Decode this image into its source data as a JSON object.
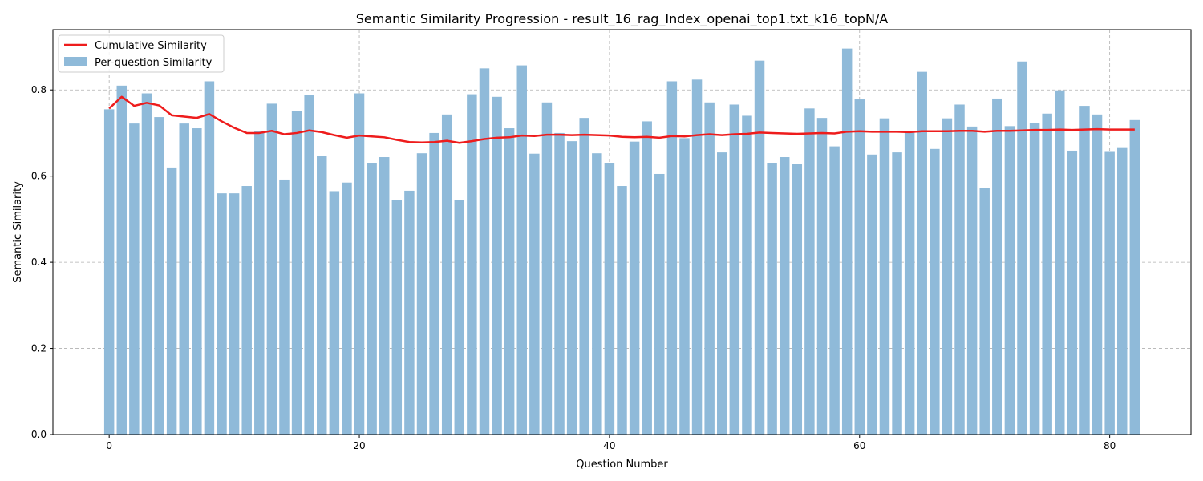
{
  "chart_data": {
    "type": "bar",
    "title": "Semantic Similarity Progression - result_16_rag_Index_openai_top1.txt_k16_topN/A",
    "xlabel": "Question Number",
    "ylabel": "Semantic Similarity",
    "xlim": [
      -4.5,
      86.5
    ],
    "ylim": [
      0,
      0.94
    ],
    "xticks": [
      0,
      20,
      40,
      60,
      80
    ],
    "yticks": [
      0.0,
      0.2,
      0.4,
      0.6,
      0.8
    ],
    "xtick_labels": [
      "0",
      "20",
      "40",
      "60",
      "80"
    ],
    "ytick_labels": [
      "0.0",
      "0.2",
      "0.4",
      "0.6",
      "0.8"
    ],
    "grid": true,
    "legend_position": "top-left",
    "x": [
      0,
      1,
      2,
      3,
      4,
      5,
      6,
      7,
      8,
      9,
      10,
      11,
      12,
      13,
      14,
      15,
      16,
      17,
      18,
      19,
      20,
      21,
      22,
      23,
      24,
      25,
      26,
      27,
      28,
      29,
      30,
      31,
      32,
      33,
      34,
      35,
      36,
      37,
      38,
      39,
      40,
      41,
      42,
      43,
      44,
      45,
      46,
      47,
      48,
      49,
      50,
      51,
      52,
      53,
      54,
      55,
      56,
      57,
      58,
      59,
      60,
      61,
      62,
      63,
      64,
      65,
      66,
      67,
      68,
      69,
      70,
      71,
      72,
      73,
      74,
      75,
      76,
      77,
      78,
      79,
      80,
      81,
      82
    ],
    "series": [
      {
        "name": "Per-question Similarity",
        "kind": "bar",
        "color": "#8fbad9",
        "values": [
          0.755,
          0.81,
          0.722,
          0.792,
          0.737,
          0.62,
          0.722,
          0.711,
          0.82,
          0.56,
          0.56,
          0.577,
          0.705,
          0.768,
          0.592,
          0.751,
          0.788,
          0.646,
          0.565,
          0.585,
          0.792,
          0.631,
          0.644,
          0.544,
          0.566,
          0.653,
          0.7,
          0.743,
          0.544,
          0.79,
          0.85,
          0.784,
          0.711,
          0.857,
          0.652,
          0.771,
          0.7,
          0.681,
          0.735,
          0.653,
          0.631,
          0.577,
          0.68,
          0.727,
          0.605,
          0.82,
          0.688,
          0.824,
          0.771,
          0.655,
          0.766,
          0.74,
          0.868,
          0.631,
          0.644,
          0.629,
          0.757,
          0.735,
          0.669,
          0.896,
          0.778,
          0.65,
          0.734,
          0.655,
          0.704,
          0.842,
          0.663,
          0.734,
          0.766,
          0.715,
          0.572,
          0.78,
          0.716,
          0.866,
          0.723,
          0.745,
          0.799,
          0.659,
          0.763,
          0.743,
          0.658,
          0.667,
          0.73
        ]
      },
      {
        "name": "Cumulative Similarity",
        "kind": "line",
        "color": "#ee1c1c",
        "values": [
          0.757,
          0.784,
          0.763,
          0.77,
          0.764,
          0.741,
          0.738,
          0.735,
          0.744,
          0.727,
          0.712,
          0.7,
          0.7,
          0.705,
          0.697,
          0.7,
          0.706,
          0.702,
          0.695,
          0.689,
          0.694,
          0.692,
          0.69,
          0.684,
          0.679,
          0.678,
          0.679,
          0.682,
          0.677,
          0.681,
          0.686,
          0.689,
          0.69,
          0.694,
          0.693,
          0.696,
          0.696,
          0.695,
          0.696,
          0.695,
          0.694,
          0.691,
          0.69,
          0.691,
          0.689,
          0.693,
          0.692,
          0.695,
          0.697,
          0.695,
          0.697,
          0.698,
          0.701,
          0.7,
          0.699,
          0.698,
          0.699,
          0.7,
          0.699,
          0.703,
          0.704,
          0.703,
          0.703,
          0.703,
          0.702,
          0.704,
          0.704,
          0.704,
          0.705,
          0.705,
          0.703,
          0.705,
          0.705,
          0.706,
          0.707,
          0.707,
          0.708,
          0.707,
          0.708,
          0.709,
          0.708,
          0.708,
          0.708
        ]
      }
    ]
  }
}
